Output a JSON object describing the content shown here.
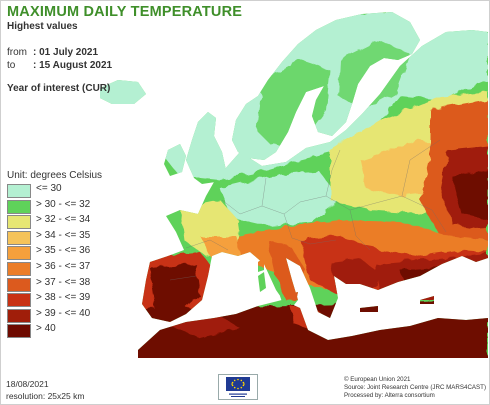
{
  "title": "MAXIMUM DAILY TEMPERATURE",
  "subtitle": "Highest values",
  "period": {
    "from_label": "from",
    "from_value": ": 01 July 2021",
    "to_label": "to",
    "to_value": ": 15 August 2021"
  },
  "year_of_interest": "Year of interest (CUR)",
  "legend": {
    "title": "Unit: degrees Celsius",
    "items": [
      {
        "label": "<= 30",
        "color": "#b4f0d2"
      },
      {
        "label": "> 30 - <= 32",
        "color": "#5fd25a"
      },
      {
        "label": "> 32 - <= 34",
        "color": "#e6e673"
      },
      {
        "label": "> 34 - <= 35",
        "color": "#f5c35a"
      },
      {
        "label": "> 35 - <= 36",
        "color": "#f5a03c"
      },
      {
        "label": "> 36 - <= 37",
        "color": "#eb7d28"
      },
      {
        "label": "> 37 - <= 38",
        "color": "#dc5a1e"
      },
      {
        "label": "> 38 - <= 39",
        "color": "#c83214"
      },
      {
        "label": "> 39 - <= 40",
        "color": "#a01e0a"
      },
      {
        "label": "> 40",
        "color": "#6e0a00"
      }
    ]
  },
  "footer": {
    "date": "18/08/2021",
    "resolution": "resolution: 25x25 km",
    "credits": [
      "© European Union 2021",
      "Source: Joint Research Centre (JRC MARS4CAST)",
      "Processed by: Alterra consortium"
    ]
  }
}
